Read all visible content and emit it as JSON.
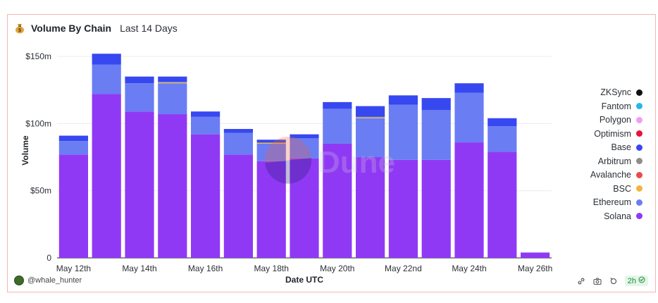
{
  "header": {
    "title": "Volume By Chain",
    "subtitle": "Last 14 Days",
    "icon": "money-bag-icon"
  },
  "footer": {
    "author": "@whale_hunter",
    "refresh_badge": "2h"
  },
  "watermark": "Dune",
  "chart_data": {
    "type": "bar",
    "stacked": true,
    "xlabel": "Date UTC",
    "ylabel": "Volume",
    "ylim": [
      0,
      160
    ],
    "yticks": [
      0,
      50,
      100,
      150
    ],
    "ytick_labels": [
      "0",
      "$50m",
      "$100m",
      "$150m"
    ],
    "x_tick_labels": [
      "May 12th",
      "May 14th",
      "May 16th",
      "May 18th",
      "May 20th",
      "May 22nd",
      "May 24th",
      "May 26th"
    ],
    "categories": [
      "May 12th",
      "May 13th",
      "May 14th",
      "May 15th",
      "May 16th",
      "May 17th",
      "May 18th",
      "May 19th",
      "May 20th",
      "May 21st",
      "May 22nd",
      "May 23rd",
      "May 24th",
      "May 25th",
      "May 26th"
    ],
    "legend_position": "right",
    "series": [
      {
        "name": "Solana",
        "color": "#9039f5",
        "values": [
          77,
          122,
          109,
          107,
          92,
          77,
          72,
          74,
          85,
          75,
          73,
          73,
          86,
          79,
          4
        ]
      },
      {
        "name": "Ethereum",
        "color": "#6a7df3",
        "values": [
          10,
          22,
          21,
          23,
          13,
          16,
          13,
          15,
          26,
          29,
          41,
          37,
          37,
          19,
          0
        ]
      },
      {
        "name": "BSC",
        "color": "#f2b53a",
        "values": [
          0,
          0,
          0,
          0.5,
          0,
          0,
          0.5,
          0,
          0,
          0.5,
          0,
          0,
          0,
          0,
          0
        ]
      },
      {
        "name": "Avalanche",
        "color": "#ec4a4a",
        "values": [
          0,
          0,
          0,
          0,
          0,
          0,
          0,
          0,
          0,
          0,
          0,
          0,
          0,
          0,
          0
        ]
      },
      {
        "name": "Arbitrum",
        "color": "#8e8e8e",
        "values": [
          0,
          0,
          0,
          0.5,
          0,
          0,
          0.5,
          0,
          0,
          0.5,
          0,
          0,
          0,
          0,
          0
        ]
      },
      {
        "name": "Base",
        "color": "#3748f0",
        "values": [
          4,
          8,
          5,
          4,
          4,
          3,
          2,
          3,
          5,
          8,
          7,
          9,
          7,
          6,
          0
        ]
      },
      {
        "name": "Optimism",
        "color": "#e8123a",
        "values": [
          0,
          0,
          0,
          0,
          0,
          0,
          0,
          0,
          0,
          0,
          0,
          0,
          0,
          0,
          0
        ]
      },
      {
        "name": "Polygon",
        "color": "#f39cf0",
        "values": [
          0,
          0,
          0,
          0,
          0,
          0,
          0,
          0,
          0,
          0,
          0,
          0,
          0,
          0,
          0
        ]
      },
      {
        "name": "Fantom",
        "color": "#27b6e6",
        "values": [
          0,
          0,
          0,
          0,
          0,
          0,
          0,
          0,
          0,
          0,
          0,
          0,
          0,
          0,
          0
        ]
      },
      {
        "name": "ZKSync",
        "color": "#111111",
        "values": [
          0,
          0,
          0,
          0,
          0,
          0,
          0,
          0,
          0,
          0,
          0,
          0,
          0,
          0,
          0
        ]
      }
    ]
  }
}
